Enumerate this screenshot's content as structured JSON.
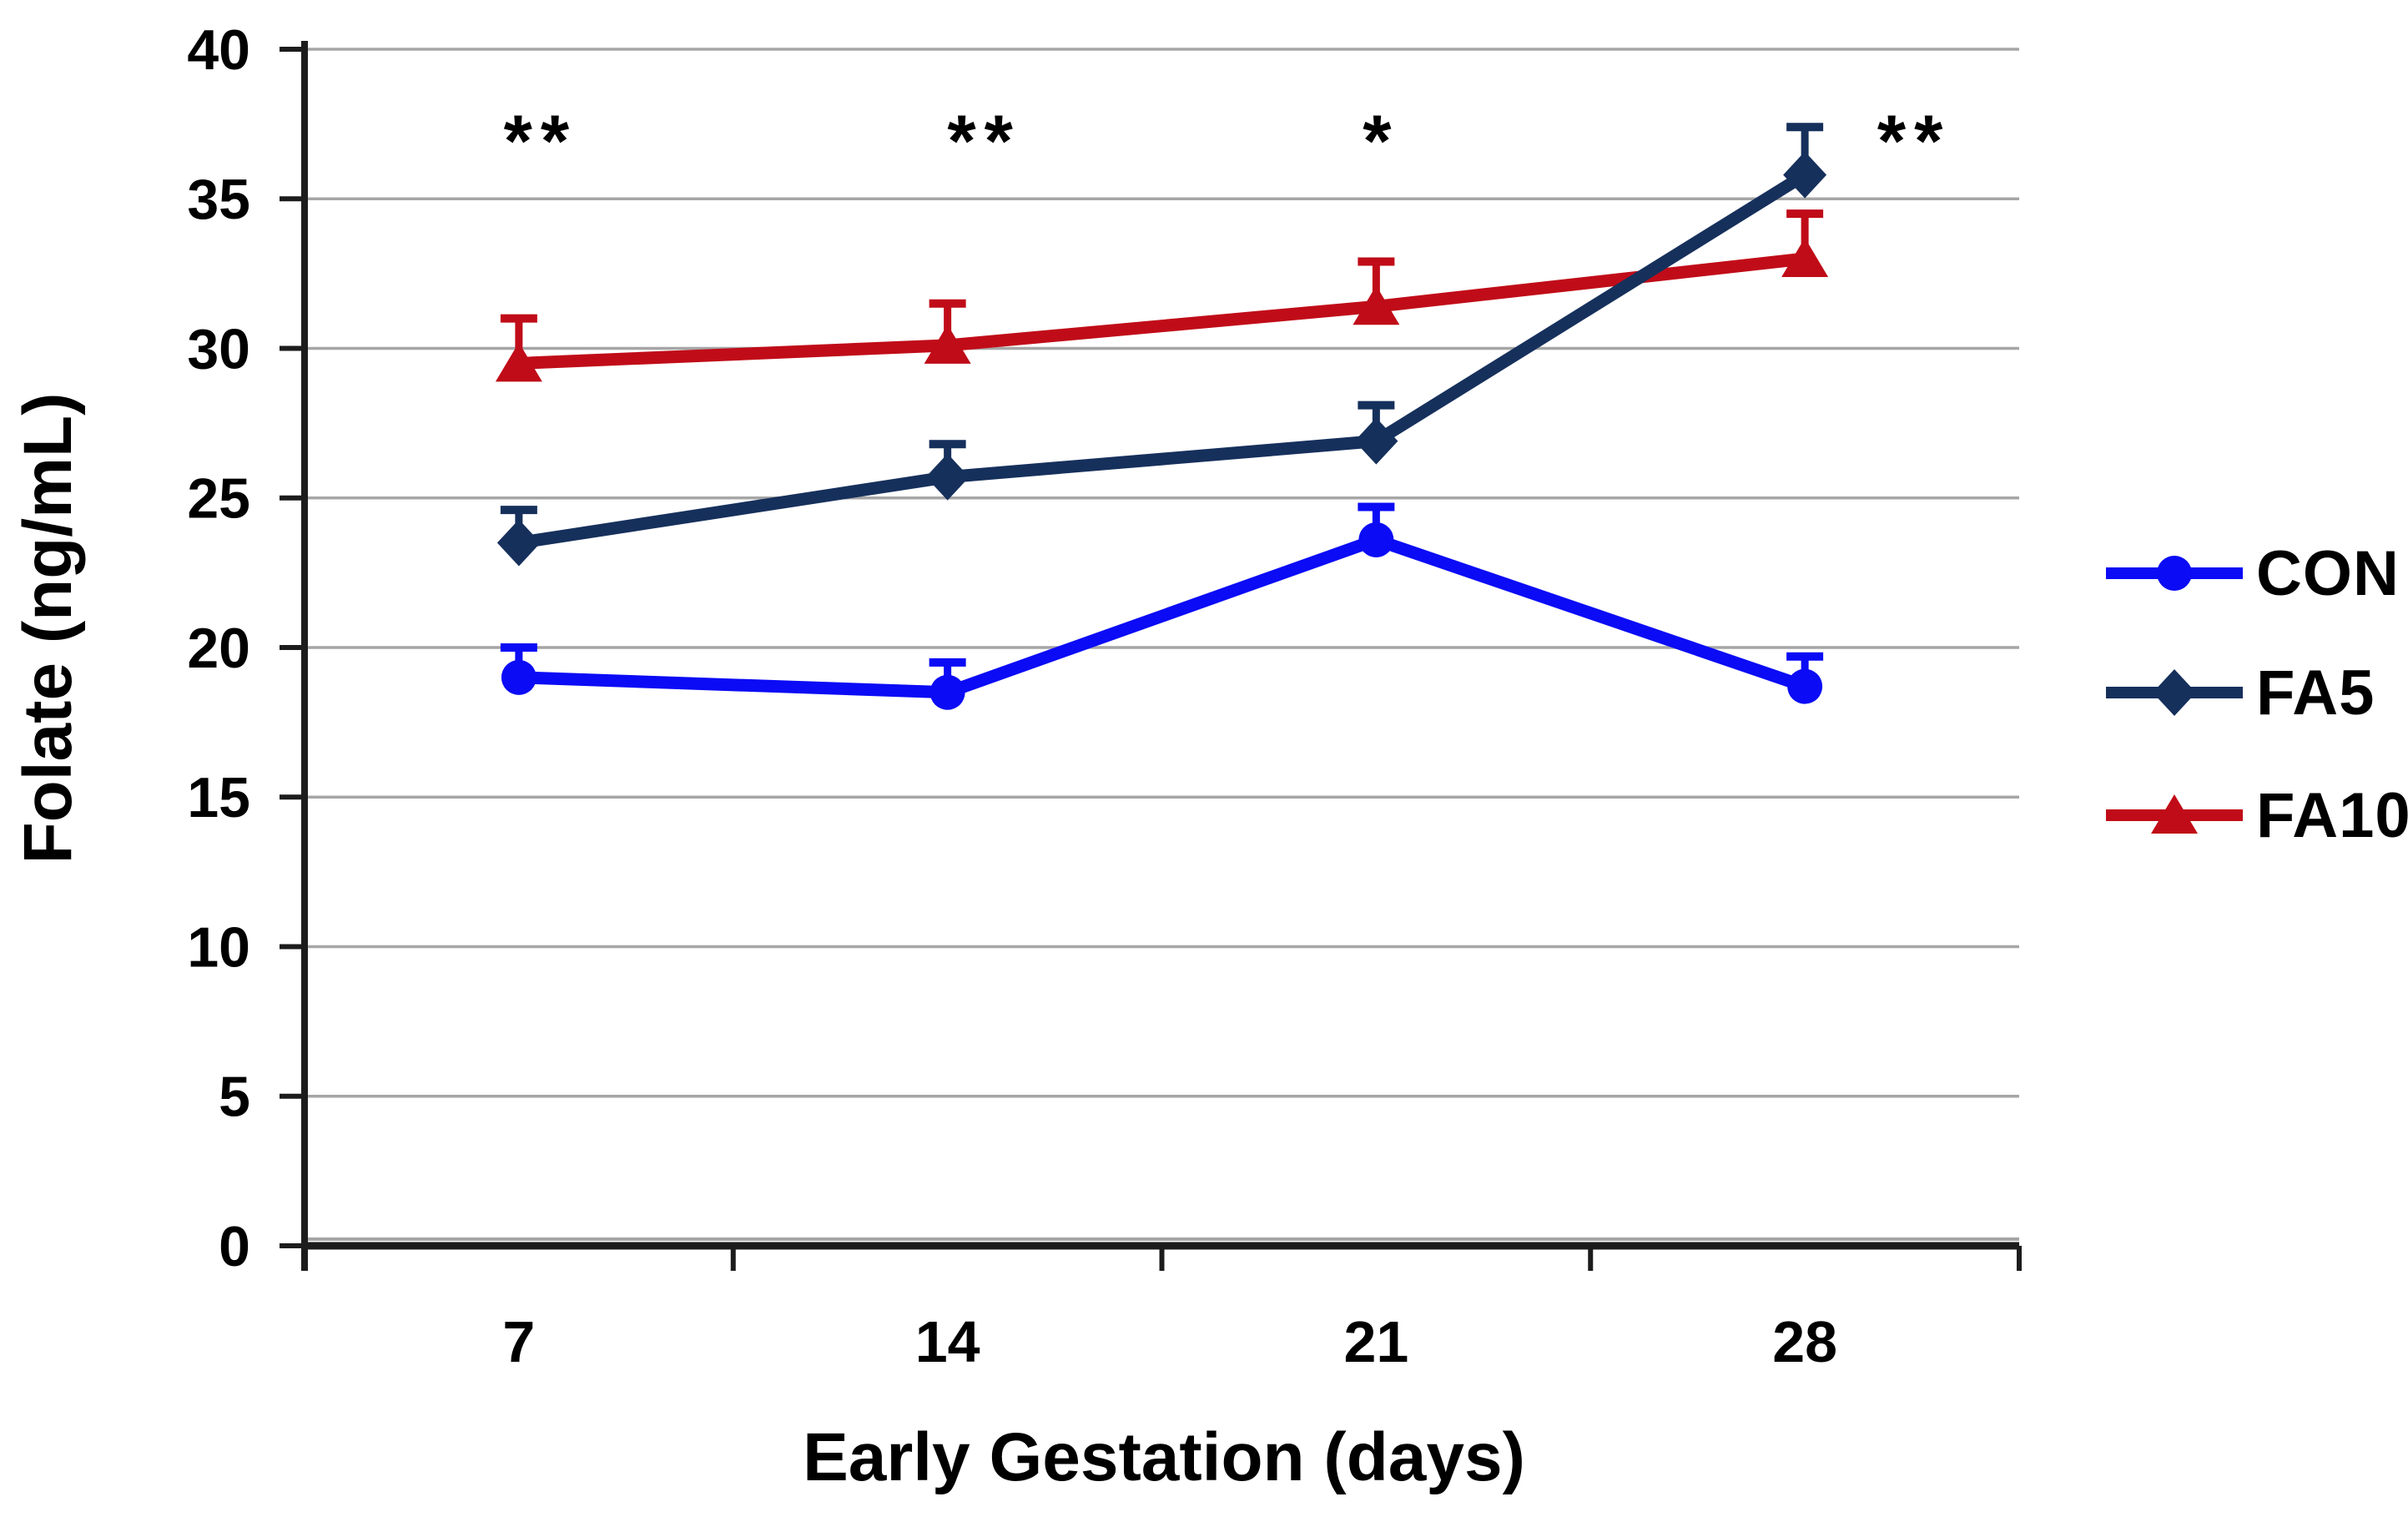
{
  "figure": {
    "background_color": "#FFFFFF"
  },
  "chart_data": {
    "type": "line",
    "title": "",
    "xlabel": "Early Gestation (days)",
    "ylabel": "Folate (ng/mL)",
    "categories": [
      "7",
      "14",
      "21",
      "28"
    ],
    "ylim": [
      0,
      40
    ],
    "ytick_step": 5,
    "ytick_labels": [
      "0",
      "5",
      "10",
      "15",
      "20",
      "25",
      "30",
      "35",
      "40"
    ],
    "grid": "horizontal",
    "gridline_color": "#A6A6A6",
    "axis_color": "#1C1C1C",
    "legend_position": "right",
    "series": [
      {
        "name": "CON",
        "color": "#0B0BF5",
        "marker": "circle",
        "values": [
          19.0,
          18.5,
          23.6,
          18.7
        ],
        "error_up": [
          1.0,
          1.0,
          1.1,
          1.0
        ]
      },
      {
        "name": "FA5",
        "color": "#16305C",
        "marker": "diamond",
        "values": [
          23.5,
          25.7,
          26.9,
          35.8
        ],
        "error_up": [
          1.1,
          1.1,
          1.2,
          1.6
        ]
      },
      {
        "name": "FA10",
        "color": "#C00C18",
        "marker": "triangle",
        "values": [
          29.5,
          30.1,
          31.4,
          33.0
        ],
        "error_up": [
          1.5,
          1.4,
          1.5,
          1.5
        ]
      }
    ],
    "annotations": [
      {
        "text": "**",
        "category_index": 0,
        "y": 37.4,
        "x_offset": 26
      },
      {
        "text": "**",
        "category_index": 1,
        "y": 37.4,
        "x_offset": 44
      },
      {
        "text": "*",
        "category_index": 2,
        "y": 37.4,
        "x_offset": 6
      },
      {
        "text": "**",
        "category_index": 3,
        "y": 37.4,
        "x_offset": 131
      }
    ]
  }
}
